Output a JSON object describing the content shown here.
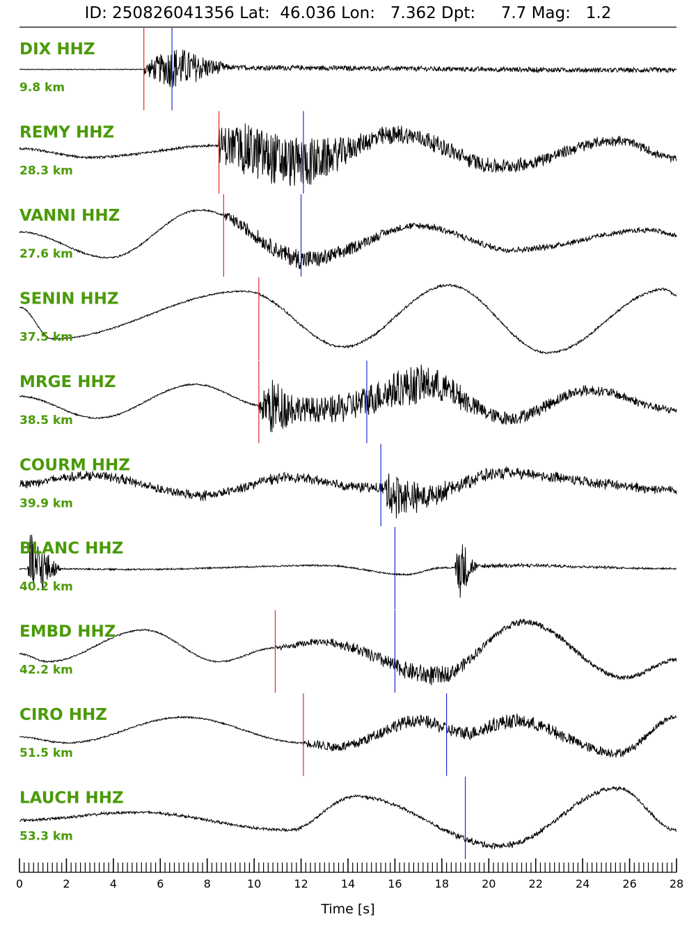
{
  "chart_data": {
    "type": "line",
    "title": "ID: 250826041356 Lat:  46.036 Lon:   7.362 Dpt:     7.7 Mag:   1.2",
    "xlabel": "Time [s]",
    "xlim": [
      0,
      28
    ],
    "xticks": [
      0,
      2,
      4,
      6,
      8,
      10,
      12,
      14,
      16,
      18,
      20,
      22,
      24,
      26,
      28
    ],
    "pick_colors": {
      "p": "#e8261e",
      "s": "#1e2ad6",
      "trace": "#000000",
      "label": "#4a9a08"
    },
    "traces": [
      {
        "station": "DIX HHZ",
        "distance": "9.8 km",
        "p_pick": 5.3,
        "s_pick": 6.5,
        "waveform": {
          "onset": 5.3,
          "trend": [
            [
              0,
              0
            ],
            [
              5,
              0
            ],
            [
              7,
              0.05
            ],
            [
              28,
              -0.02
            ]
          ],
          "noise": 0.01,
          "burst": [
            [
              5.3,
              0.15
            ],
            [
              6.6,
              0.55
            ],
            [
              9,
              0.06
            ]
          ]
        }
      },
      {
        "station": "REMY HHZ",
        "distance": "28.3 km",
        "p_pick": 8.5,
        "s_pick": 12.1,
        "waveform": {
          "onset": 8.5,
          "trend": [
            [
              0,
              0.1
            ],
            [
              3,
              -0.12
            ],
            [
              8.5,
              0.18
            ],
            [
              12,
              -0.25
            ],
            [
              16.2,
              0.45
            ],
            [
              20.5,
              -0.35
            ],
            [
              25.5,
              0.3
            ],
            [
              28,
              -0.15
            ]
          ],
          "noise": 0.03,
          "burst": [
            [
              8.5,
              0.45
            ],
            [
              10,
              0.7
            ],
            [
              12.5,
              0.6
            ],
            [
              14.5,
              0.25
            ],
            [
              28,
              0.08
            ]
          ]
        }
      },
      {
        "station": "VANNI HHZ",
        "distance": "27.6 km",
        "p_pick": 8.7,
        "s_pick": 12.0,
        "waveform": {
          "onset": 8.7,
          "trend": [
            [
              0,
              0.1
            ],
            [
              3.8,
              -0.55
            ],
            [
              7.7,
              0.65
            ],
            [
              12.3,
              -0.6
            ],
            [
              17,
              0.25
            ],
            [
              21,
              -0.35
            ],
            [
              27,
              0.15
            ],
            [
              28,
              0
            ]
          ],
          "noise": 0.02,
          "burst": [
            [
              8.7,
              0.12
            ],
            [
              12,
              0.25
            ],
            [
              13,
              0.2
            ],
            [
              16,
              0.08
            ],
            [
              28,
              0.05
            ]
          ]
        }
      },
      {
        "station": "SENIN HHZ",
        "distance": "37.5 km",
        "p_pick": 10.2,
        "s_pick": null,
        "waveform": {
          "onset": 10.2,
          "trend": [
            [
              0,
              0.3
            ],
            [
              1.4,
              -0.5
            ],
            [
              9.6,
              0.7
            ],
            [
              13.8,
              -0.7
            ],
            [
              18.3,
              0.85
            ],
            [
              22.5,
              -0.85
            ],
            [
              27.5,
              0.75
            ],
            [
              28,
              0.6
            ]
          ],
          "noise": 0.02,
          "burst": [
            [
              10.2,
              0.02
            ],
            [
              28,
              0.02
            ]
          ]
        }
      },
      {
        "station": "MRGE HHZ",
        "distance": "38.5 km",
        "p_pick": 10.2,
        "s_pick": 14.8,
        "waveform": {
          "onset": 10.2,
          "trend": [
            [
              0,
              0.15
            ],
            [
              3.3,
              -0.4
            ],
            [
              7.5,
              0.45
            ],
            [
              10.5,
              -0.1
            ],
            [
              13,
              -0.2
            ],
            [
              17.3,
              0.45
            ],
            [
              20.8,
              -0.4
            ],
            [
              24.3,
              0.3
            ],
            [
              28,
              -0.2
            ]
          ],
          "noise": 0.02,
          "burst": [
            [
              10.2,
              0.2
            ],
            [
              10.7,
              0.75
            ],
            [
              12,
              0.3
            ],
            [
              14.8,
              0.4
            ],
            [
              17,
              0.5
            ],
            [
              20,
              0.18
            ],
            [
              28,
              0.08
            ]
          ]
        }
      },
      {
        "station": "COURM HHZ",
        "distance": "39.9 km",
        "p_pick": null,
        "s_pick": 15.4,
        "waveform": {
          "onset": 0,
          "trend": [
            [
              0,
              0.05
            ],
            [
              3,
              0.25
            ],
            [
              7.8,
              -0.25
            ],
            [
              11.5,
              0.2
            ],
            [
              14.8,
              -0.05
            ],
            [
              16.8,
              -0.3
            ],
            [
              20.5,
              0.3
            ],
            [
              28,
              -0.1
            ]
          ],
          "noise": 0.09,
          "burst": [
            [
              0,
              0.05
            ],
            [
              15.3,
              0.06
            ],
            [
              15.9,
              0.6
            ],
            [
              17,
              0.3
            ],
            [
              20,
              0.1
            ],
            [
              28,
              0.05
            ]
          ]
        }
      },
      {
        "station": "BLANC HHZ",
        "distance": "40.2 km",
        "p_pick": null,
        "s_pick": 16.0,
        "waveform": {
          "onset": 0,
          "trend": [
            [
              0,
              0
            ],
            [
              5,
              -0.02
            ],
            [
              13,
              0.08
            ],
            [
              16.5,
              -0.15
            ],
            [
              18,
              0.02
            ],
            [
              21,
              0.08
            ],
            [
              28,
              0
            ]
          ],
          "noise": 0.02,
          "burst": [
            [
              0,
              0
            ],
            [
              0.35,
              0
            ],
            [
              0.45,
              0.9
            ],
            [
              1.8,
              0
            ],
            [
              18.5,
              0
            ],
            [
              18.75,
              0.8
            ],
            [
              19.5,
              0.05
            ],
            [
              28,
              0
            ]
          ]
        }
      },
      {
        "station": "EMBD HHZ",
        "distance": "42.2 km",
        "p_pick": 10.9,
        "s_pick": 16.0,
        "waveform": {
          "onset": 10.9,
          "trend": [
            [
              0,
              -0.05
            ],
            [
              1.2,
              -0.25
            ],
            [
              5.3,
              0.55
            ],
            [
              8.5,
              -0.25
            ],
            [
              10.9,
              0.1
            ],
            [
              12.8,
              0.25
            ],
            [
              17.8,
              -0.6
            ],
            [
              21.5,
              0.75
            ],
            [
              25.8,
              -0.65
            ],
            [
              28,
              -0.2
            ]
          ],
          "noise": 0.02,
          "burst": [
            [
              10.9,
              0.05
            ],
            [
              13,
              0.08
            ],
            [
              17.5,
              0.25
            ],
            [
              20,
              0.08
            ],
            [
              28,
              0.04
            ]
          ]
        }
      },
      {
        "station": "CIRO HHZ",
        "distance": "51.5 km",
        "p_pick": 12.1,
        "s_pick": 18.2,
        "waveform": {
          "onset": 12.1,
          "trend": [
            [
              0,
              -0.05
            ],
            [
              2,
              -0.2
            ],
            [
              7,
              0.45
            ],
            [
              12.1,
              -0.2
            ],
            [
              13.5,
              -0.3
            ],
            [
              17,
              0.35
            ],
            [
              19,
              0.05
            ],
            [
              21,
              0.35
            ],
            [
              25.5,
              -0.45
            ],
            [
              28,
              0.45
            ]
          ],
          "noise": 0.02,
          "burst": [
            [
              12.1,
              0.1
            ],
            [
              16,
              0.15
            ],
            [
              21,
              0.18
            ],
            [
              28,
              0.06
            ]
          ]
        }
      },
      {
        "station": "LAUCH HHZ",
        "distance": "53.3 km",
        "p_pick": null,
        "s_pick": 19.0,
        "waveform": {
          "onset": 0,
          "trend": [
            [
              0,
              -0.05
            ],
            [
              5,
              0.15
            ],
            [
              11.5,
              -0.3
            ],
            [
              14.3,
              0.55
            ],
            [
              20.5,
              -0.7
            ],
            [
              25.5,
              0.75
            ],
            [
              28,
              -0.3
            ]
          ],
          "noise": 0.03,
          "burst": [
            [
              0,
              0.01
            ],
            [
              17.5,
              0.02
            ],
            [
              19,
              0.07
            ],
            [
              22,
              0.06
            ],
            [
              28,
              0.02
            ]
          ]
        }
      }
    ]
  }
}
